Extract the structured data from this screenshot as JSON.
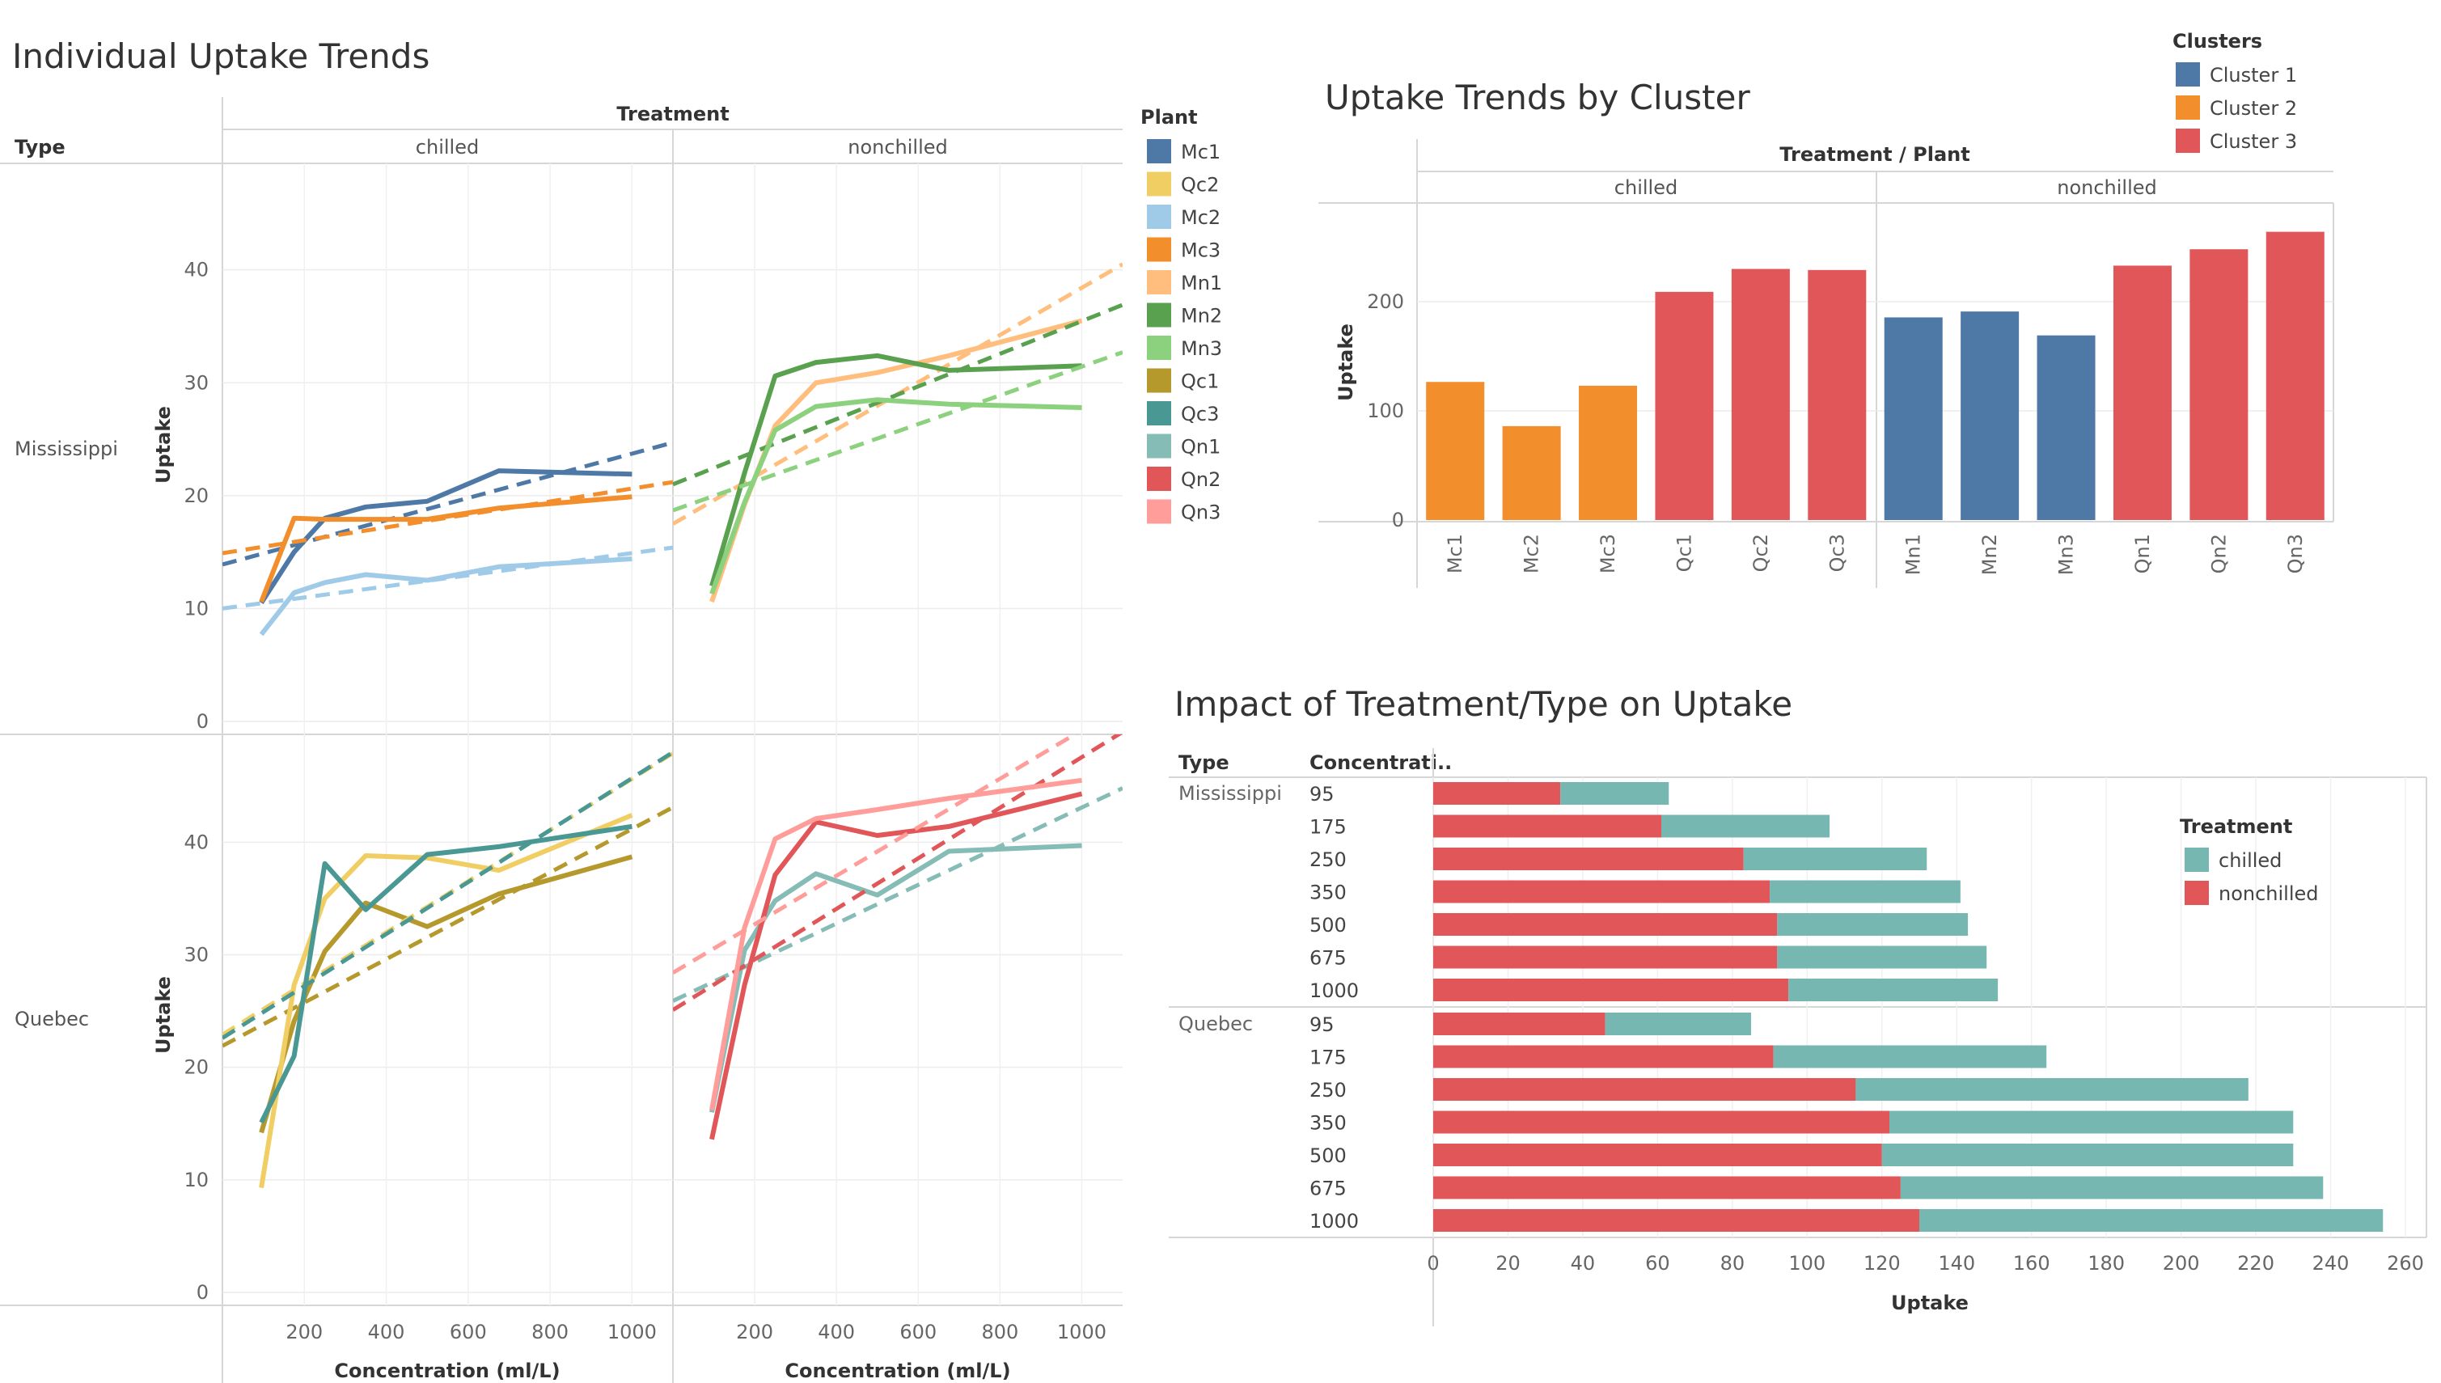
{
  "chart_data": [
    {
      "id": "individual",
      "type": "line",
      "title": "Individual Uptake Trends",
      "column_header": "Treatment",
      "row_header": "Type",
      "columns": [
        "chilled",
        "nonchilled"
      ],
      "rows": [
        "Mississippi",
        "Quebec"
      ],
      "xlabel": "Concentration (ml/L)",
      "ylabel": "Uptake",
      "xticks": [
        "200",
        "400",
        "600",
        "800",
        "1000"
      ],
      "xlim": [
        0,
        1100
      ],
      "ylim": [
        0,
        48
      ],
      "yticks": [
        "0",
        "10",
        "20",
        "30",
        "40"
      ],
      "legend_title": "Plant",
      "legend": [
        {
          "name": "Mc1",
          "color": "#4e79a7"
        },
        {
          "name": "Qc2",
          "color": "#f1ce63"
        },
        {
          "name": "Mc2",
          "color": "#a0cbe8"
        },
        {
          "name": "Mc3",
          "color": "#f28e2b"
        },
        {
          "name": "Mn1",
          "color": "#ffbe7d"
        },
        {
          "name": "Mn2",
          "color": "#59a14f"
        },
        {
          "name": "Mn3",
          "color": "#8cd17d"
        },
        {
          "name": "Qc1",
          "color": "#b6992d"
        },
        {
          "name": "Qc3",
          "color": "#499894"
        },
        {
          "name": "Qn1",
          "color": "#86bcb6"
        },
        {
          "name": "Qn2",
          "color": "#e15759"
        },
        {
          "name": "Qn3",
          "color": "#ff9d9a"
        }
      ],
      "x": [
        95,
        175,
        250,
        350,
        500,
        675,
        1000
      ],
      "series": [
        {
          "name": "Mc1",
          "panel": [
            0,
            0
          ],
          "color": "#4e79a7",
          "values": [
            10.5,
            15.0,
            18.0,
            19.0,
            19.5,
            22.2,
            21.9
          ],
          "trend": [
            13.9,
            24.7
          ]
        },
        {
          "name": "Mc2",
          "panel": [
            0,
            0
          ],
          "color": "#a0cbe8",
          "values": [
            7.7,
            11.4,
            12.3,
            13.0,
            12.5,
            13.7,
            14.4
          ],
          "trend": [
            10.0,
            15.4
          ]
        },
        {
          "name": "Mc3",
          "panel": [
            0,
            0
          ],
          "color": "#f28e2b",
          "values": [
            10.6,
            18.0,
            17.9,
            17.9,
            17.9,
            18.9,
            19.9
          ],
          "trend": [
            14.9,
            21.2
          ]
        },
        {
          "name": "Mn1",
          "panel": [
            0,
            1
          ],
          "color": "#ffbe7d",
          "values": [
            10.6,
            19.2,
            26.2,
            30.0,
            30.9,
            32.4,
            35.5
          ],
          "trend": [
            17.5,
            40.5
          ]
        },
        {
          "name": "Mn2",
          "panel": [
            0,
            1
          ],
          "color": "#59a14f",
          "values": [
            12.0,
            22.0,
            30.6,
            31.8,
            32.4,
            31.1,
            31.5
          ],
          "trend": [
            21.0,
            36.9
          ]
        },
        {
          "name": "Mn3",
          "panel": [
            0,
            1
          ],
          "color": "#8cd17d",
          "values": [
            11.3,
            19.4,
            25.8,
            27.9,
            28.5,
            28.1,
            27.8
          ],
          "trend": [
            18.7,
            32.7
          ]
        },
        {
          "name": "Qc1",
          "panel": [
            1,
            0
          ],
          "color": "#b6992d",
          "values": [
            14.2,
            24.1,
            30.3,
            34.6,
            32.5,
            35.4,
            38.7
          ],
          "trend": [
            21.9,
            43.1
          ]
        },
        {
          "name": "Qc2",
          "panel": [
            1,
            0
          ],
          "color": "#f1ce63",
          "values": [
            9.3,
            27.3,
            35.0,
            38.8,
            38.6,
            37.5,
            42.4
          ],
          "trend": [
            22.9,
            47.9
          ]
        },
        {
          "name": "Qc3",
          "panel": [
            1,
            0
          ],
          "color": "#499894",
          "values": [
            15.1,
            21.0,
            38.1,
            34.0,
            38.9,
            39.6,
            41.4
          ],
          "trend": [
            22.6,
            48.0
          ]
        },
        {
          "name": "Qn1",
          "panel": [
            1,
            1
          ],
          "color": "#86bcb6",
          "values": [
            16.0,
            30.4,
            34.8,
            37.2,
            35.3,
            39.2,
            39.7
          ],
          "trend": [
            25.9,
            44.8
          ]
        },
        {
          "name": "Qn2",
          "panel": [
            1,
            1
          ],
          "color": "#e15759",
          "values": [
            13.6,
            27.3,
            37.1,
            41.8,
            40.6,
            41.4,
            44.3
          ],
          "trend": [
            25.1,
            49.8
          ]
        },
        {
          "name": "Qn3",
          "panel": [
            1,
            1
          ],
          "color": "#ff9d9a",
          "values": [
            16.2,
            32.4,
            40.3,
            42.1,
            42.9,
            43.9,
            45.5
          ],
          "trend": [
            28.4,
            52.1
          ]
        }
      ]
    },
    {
      "id": "cluster",
      "type": "bar",
      "title": "Uptake Trends by Cluster",
      "header": "Treatment / Plant",
      "ylabel": "Uptake",
      "ylim": [
        0,
        280
      ],
      "yticks": [
        "0",
        "100",
        "200"
      ],
      "groups": [
        "chilled",
        "nonchilled"
      ],
      "legend_title": "Clusters",
      "legend": [
        {
          "name": "Cluster 1",
          "color": "#4e79a7"
        },
        {
          "name": "Cluster 2",
          "color": "#f28e2b"
        },
        {
          "name": "Cluster 3",
          "color": "#e15759"
        }
      ],
      "categories": [
        "Mc1",
        "Mc2",
        "Mc3",
        "Qc1",
        "Qc2",
        "Qc3",
        "Mn1",
        "Mn2",
        "Mn3",
        "Qn1",
        "Qn2",
        "Qn3"
      ],
      "values": [
        126.5,
        86.0,
        123.0,
        209.0,
        230.0,
        229.0,
        185.6,
        191.0,
        169.1,
        233.0,
        248.0,
        264.0
      ],
      "clusters": [
        2,
        2,
        2,
        3,
        3,
        3,
        1,
        1,
        1,
        3,
        3,
        3
      ]
    },
    {
      "id": "impact",
      "type": "bar",
      "orientation": "horizontal",
      "stacked": true,
      "title": "Impact of Treatment/Type on Uptake",
      "row_headers": [
        "Type",
        "Concentrati.."
      ],
      "xlabel": "Uptake",
      "xlim": [
        0,
        265
      ],
      "xticks": [
        "0",
        "20",
        "40",
        "60",
        "80",
        "100",
        "120",
        "140",
        "160",
        "180",
        "200",
        "220",
        "240",
        "260"
      ],
      "legend_title": "Treatment",
      "legend": [
        {
          "name": "chilled",
          "color": "#76b7b2"
        },
        {
          "name": "nonchilled",
          "color": "#e15759"
        }
      ],
      "groups": [
        {
          "type": "Mississippi",
          "categories": [
            "95",
            "175",
            "250",
            "350",
            "500",
            "675",
            "1000"
          ],
          "nonchilled": [
            34,
            61,
            83,
            90,
            92,
            92,
            95
          ],
          "chilled": [
            29,
            45,
            49,
            51,
            51,
            56,
            56
          ]
        },
        {
          "type": "Quebec",
          "categories": [
            "95",
            "175",
            "250",
            "350",
            "500",
            "675",
            "1000"
          ],
          "nonchilled": [
            46,
            91,
            113,
            122,
            120,
            125,
            130
          ],
          "chilled": [
            39,
            73,
            105,
            108,
            110,
            113,
            124
          ]
        }
      ]
    }
  ]
}
